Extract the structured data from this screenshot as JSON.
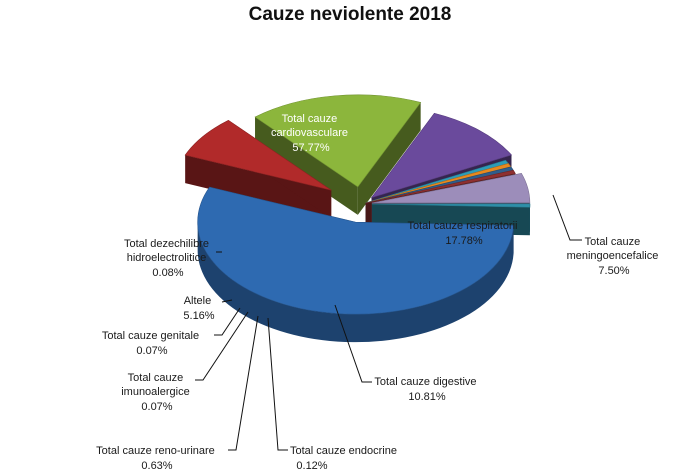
{
  "chart_data": {
    "type": "pie",
    "title": "Cauze neviolente 2018",
    "slices": [
      {
        "label": "Total cauze cardiovasculare",
        "value": 57.77,
        "value_label": "57.77%",
        "color": "#2E6AB1"
      },
      {
        "label": "Total cauze meningoencefalice",
        "value": 7.5,
        "value_label": "7.50%",
        "color": "#B12A2A"
      },
      {
        "label": "Total cauze respiratorii",
        "value": 17.78,
        "value_label": "17.78%",
        "color": "#8CB63C"
      },
      {
        "label": "Total cauze digestive",
        "value": 10.81,
        "value_label": "10.81%",
        "color": "#6A4A9C"
      },
      {
        "label": "Total cauze endocrine",
        "value": 0.12,
        "value_label": "0.12%",
        "color": "#2D9CB8"
      },
      {
        "label": "Total cauze reno-urinare",
        "value": 0.63,
        "value_label": "0.63%",
        "color": "#E8891F"
      },
      {
        "label": "Total cauze imunoalergice",
        "value": 0.07,
        "value_label": "0.07%",
        "color": "#2F5E8C"
      },
      {
        "label": "Total cauze genitale",
        "value": 0.07,
        "value_label": "0.07%",
        "color": "#8E3030"
      },
      {
        "label": "Altele",
        "value": 5.16,
        "value_label": "5.16%",
        "color": "#9C8DBA"
      },
      {
        "label": "Total cauze dezechilibre hidroelectrolitice",
        "value": 0.08,
        "value_label": "0.08%",
        "color": "#2E8FA8"
      }
    ]
  }
}
